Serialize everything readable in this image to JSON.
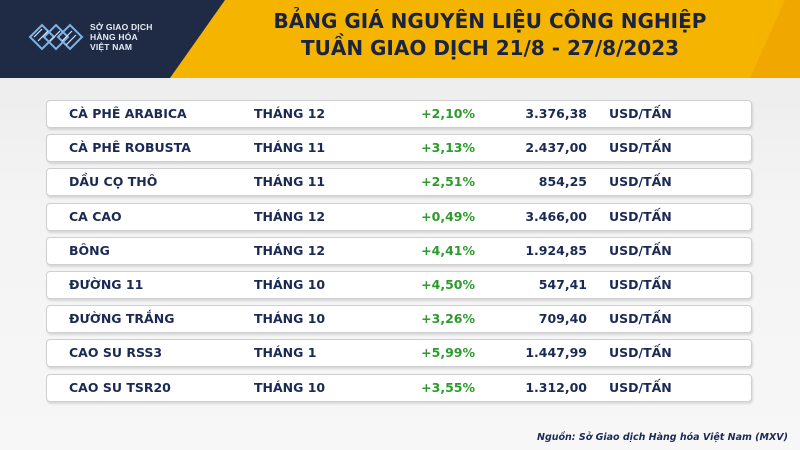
{
  "header": {
    "logo_lines": [
      "SỞ GIAO DỊCH",
      "HÀNG HÓA",
      "VIỆT NAM"
    ],
    "title_line1": "BẢNG GIÁ NGUYÊN LIỆU CÔNG NGHIỆP",
    "title_line2": "TUẦN GIAO DỊCH 21/8 - 27/8/2023"
  },
  "rows": [
    {
      "name": "CÀ PHÊ ARABICA",
      "month": "THÁNG 12",
      "change": "+2,10%",
      "price": "3.376,38",
      "unit": "USD/TẤN"
    },
    {
      "name": "CÀ PHÊ ROBUSTA",
      "month": "THÁNG 11",
      "change": "+3,13%",
      "price": "2.437,00",
      "unit": "USD/TẤN"
    },
    {
      "name": "DẦU CỌ THÔ",
      "month": "THÁNG 11",
      "change": "+2,51%",
      "price": "854,25",
      "unit": "USD/TẤN"
    },
    {
      "name": "CA CAO",
      "month": "THÁNG 12",
      "change": "+0,49%",
      "price": "3.466,00",
      "unit": "USD/TẤN"
    },
    {
      "name": "BÔNG",
      "month": "THÁNG 12",
      "change": "+4,41%",
      "price": "1.924,85",
      "unit": "USD/TẤN"
    },
    {
      "name": "ĐƯỜNG 11",
      "month": "THÁNG 10",
      "change": "+4,50%",
      "price": "547,41",
      "unit": "USD/TẤN"
    },
    {
      "name": "ĐƯỜNG TRẮNG",
      "month": "THÁNG 10",
      "change": "+3,26%",
      "price": "709,40",
      "unit": "USD/TẤN"
    },
    {
      "name": "CAO SU RSS3",
      "month": "THÁNG 1",
      "change": "+5,99%",
      "price": "1.447,99",
      "unit": "USD/TẤN"
    },
    {
      "name": "CAO SU TSR20",
      "month": "THÁNG 10",
      "change": "+3,55%",
      "price": "1.312,00",
      "unit": "USD/TẤN"
    }
  ],
  "source": "Nguồn: Sở Giao dịch Hàng hóa Việt Nam (MXV)",
  "colors": {
    "header_yellow": "#f5b400",
    "header_dark": "#1f2a44",
    "text_navy": "#1b2a55",
    "positive_green": "#2c9b2c"
  }
}
